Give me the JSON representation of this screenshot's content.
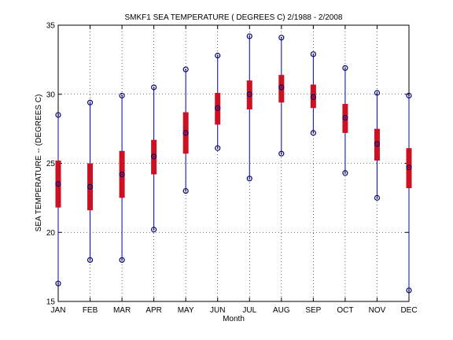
{
  "chart_data": {
    "type": "box",
    "title": "SMKF1  SEA TEMPERATURE ( DEGREES C) 2/1988 - 2/2008",
    "xlabel": "Month",
    "ylabel": "SEA TEMPERATURE -- (DEGREES C)",
    "ylim": [
      15,
      35
    ],
    "yticks": [
      15,
      20,
      25,
      30,
      35
    ],
    "grid": true,
    "categories": [
      "JAN",
      "FEB",
      "MAR",
      "APR",
      "MAY",
      "JUN",
      "JUL",
      "AUG",
      "SEP",
      "OCT",
      "NOV",
      "DEC"
    ],
    "min": [
      16.3,
      18.0,
      18.0,
      20.2,
      23.0,
      26.1,
      23.9,
      25.7,
      27.2,
      24.3,
      22.5,
      15.8
    ],
    "q1": [
      21.8,
      21.6,
      22.5,
      24.2,
      25.7,
      27.8,
      28.9,
      29.4,
      29.0,
      27.2,
      25.2,
      23.2
    ],
    "median": [
      23.5,
      23.3,
      24.2,
      25.5,
      27.2,
      29.0,
      30.0,
      30.5,
      29.8,
      28.3,
      26.4,
      24.7
    ],
    "q3": [
      25.2,
      25.0,
      25.9,
      26.7,
      28.7,
      30.1,
      31.0,
      31.4,
      30.7,
      29.3,
      27.5,
      26.1
    ],
    "max": [
      28.5,
      29.4,
      29.9,
      30.5,
      31.8,
      32.8,
      34.2,
      34.1,
      32.9,
      31.9,
      30.1,
      29.9
    ],
    "colors": {
      "whisker": "#0000cc",
      "box": "#cc1122",
      "marker": "#0a0a6a",
      "grid": "#000000"
    }
  }
}
